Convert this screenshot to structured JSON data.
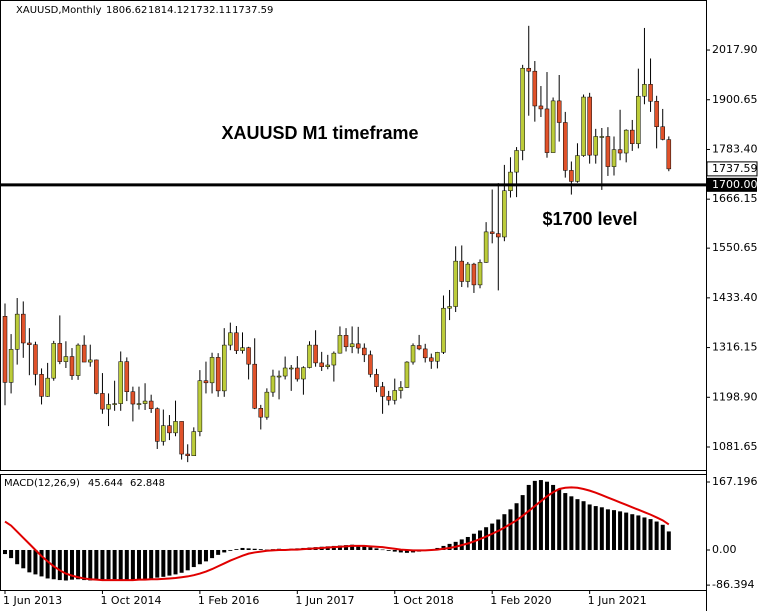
{
  "chart_data": [
    {
      "type": "candlestick",
      "title": "XAUUSD,Monthly",
      "categories": [
        "1 Jun 2013",
        null,
        null,
        null,
        null,
        null,
        null,
        null,
        null,
        null,
        null,
        null,
        null,
        null,
        null,
        null,
        "1 Oct 2014",
        null,
        null,
        null,
        null,
        null,
        null,
        null,
        null,
        null,
        null,
        null,
        null,
        null,
        null,
        null,
        "1 Feb 2016",
        null,
        null,
        null,
        null,
        null,
        null,
        null,
        null,
        null,
        null,
        null,
        null,
        null,
        null,
        null,
        "1 Jun 2017",
        null,
        null,
        null,
        null,
        null,
        null,
        null,
        null,
        null,
        null,
        null,
        null,
        null,
        null,
        null,
        "1 Oct 2018",
        null,
        null,
        null,
        null,
        null,
        null,
        null,
        null,
        null,
        null,
        null,
        null,
        null,
        null,
        null,
        "1 Feb 2020",
        null,
        null,
        null,
        null,
        null,
        null,
        null,
        null,
        null,
        null,
        null,
        null,
        null,
        null,
        null,
        "1 Jun 2021",
        null,
        null,
        null,
        null,
        null,
        null,
        null,
        null,
        null,
        null,
        null,
        null,
        null
      ],
      "open": [
        1390,
        1234,
        1312,
        1395,
        1327,
        1323,
        1253,
        1201,
        1244,
        1326,
        1283,
        1295,
        1250,
        1322,
        1282,
        1287,
        1208,
        1171,
        1182,
        1184,
        1283,
        1212,
        1183,
        1184,
        1190,
        1172,
        1095,
        1132,
        1115,
        1142,
        1065,
        1061,
        1118,
        1238,
        1233,
        1293,
        1214,
        1322,
        1351,
        1309,
        1316,
        1277,
        1173,
        1152,
        1211,
        1249,
        1249,
        1268,
        1268,
        1242,
        1269,
        1322,
        1280,
        1271,
        1275,
        1303,
        1345,
        1318,
        1325,
        1315,
        1299,
        1253,
        1224,
        1201,
        1192,
        1215,
        1222,
        1282,
        1321,
        1313,
        1292,
        1284,
        1305,
        1409,
        1413,
        1520,
        1472,
        1513,
        1464,
        1517,
        1589,
        1585,
        1577,
        1686,
        1730,
        1781,
        1975,
        1968,
        1886,
        1879,
        1776,
        1898,
        1847,
        1734,
        1708,
        1769,
        1907,
        1770,
        1814,
        1814,
        1743,
        1783,
        1775,
        1829,
        1797,
        1909,
        1937,
        1897,
        1837,
        1806.62
      ],
      "high": [
        1420,
        1348,
        1433,
        1425,
        1362,
        1330,
        1267,
        1280,
        1332,
        1392,
        1331,
        1315,
        1326,
        1345,
        1323,
        1288,
        1256,
        1208,
        1238,
        1307,
        1293,
        1224,
        1224,
        1232,
        1205,
        1175,
        1170,
        1157,
        1191,
        1142,
        1088,
        1128,
        1263,
        1283,
        1304,
        1303,
        1362,
        1375,
        1367,
        1352,
        1318,
        1338,
        1181,
        1220,
        1264,
        1262,
        1295,
        1275,
        1296,
        1272,
        1331,
        1357,
        1306,
        1299,
        1307,
        1366,
        1362,
        1366,
        1365,
        1326,
        1309,
        1266,
        1235,
        1214,
        1243,
        1237,
        1284,
        1326,
        1346,
        1325,
        1302,
        1306,
        1439,
        1452,
        1555,
        1557,
        1518,
        1516,
        1524,
        1612,
        1689,
        1704,
        1747,
        1765,
        1789,
        1983,
        2075,
        1992,
        1933,
        1966,
        1906,
        1959,
        1872,
        1755,
        1798,
        1913,
        1917,
        1832,
        1834,
        1836,
        1814,
        1877,
        1831,
        1853,
        1974,
        2070,
        1998,
        1910,
        1879,
        1814.12
      ],
      "low": [
        1180,
        1208,
        1276,
        1292,
        1251,
        1227,
        1182,
        1200,
        1238,
        1277,
        1268,
        1240,
        1240,
        1282,
        1271,
        1206,
        1160,
        1131,
        1167,
        1167,
        1190,
        1142,
        1170,
        1169,
        1162,
        1077,
        1085,
        1098,
        1107,
        1052,
        1046,
        1061,
        1107,
        1208,
        1208,
        1200,
        1200,
        1310,
        1301,
        1302,
        1241,
        1171,
        1123,
        1146,
        1200,
        1194,
        1241,
        1214,
        1236,
        1205,
        1267,
        1271,
        1261,
        1265,
        1236,
        1302,
        1307,
        1303,
        1302,
        1282,
        1246,
        1211,
        1160,
        1180,
        1182,
        1196,
        1221,
        1276,
        1310,
        1281,
        1266,
        1267,
        1301,
        1381,
        1400,
        1459,
        1458,
        1445,
        1456,
        1516,
        1562,
        1451,
        1567,
        1670,
        1671,
        1758,
        1863,
        1849,
        1860,
        1764,
        1776,
        1802,
        1717,
        1677,
        1705,
        1766,
        1750,
        1750,
        1688,
        1721,
        1722,
        1758,
        1753,
        1780,
        1786,
        1890,
        1872,
        1786,
        1805,
        1732.11
      ],
      "close": [
        1234,
        1312,
        1395,
        1327,
        1323,
        1253,
        1201,
        1244,
        1326,
        1283,
        1295,
        1250,
        1322,
        1282,
        1287,
        1208,
        1171,
        1182,
        1184,
        1283,
        1212,
        1183,
        1184,
        1190,
        1172,
        1095,
        1132,
        1115,
        1142,
        1065,
        1061,
        1118,
        1238,
        1233,
        1293,
        1214,
        1322,
        1351,
        1309,
        1316,
        1277,
        1173,
        1152,
        1211,
        1249,
        1249,
        1268,
        1268,
        1242,
        1269,
        1322,
        1280,
        1271,
        1275,
        1303,
        1345,
        1318,
        1325,
        1315,
        1299,
        1253,
        1224,
        1201,
        1192,
        1215,
        1222,
        1282,
        1321,
        1313,
        1292,
        1284,
        1305,
        1409,
        1413,
        1520,
        1472,
        1513,
        1464,
        1517,
        1589,
        1585,
        1577,
        1686,
        1730,
        1781,
        1975,
        1968,
        1886,
        1879,
        1776,
        1898,
        1847,
        1734,
        1708,
        1769,
        1907,
        1770,
        1814,
        1814,
        1743,
        1783,
        1775,
        1829,
        1797,
        1909,
        1937,
        1897,
        1837,
        1807,
        1737.59
      ],
      "up_color": "#bccc3a",
      "down_color": "#e0522a",
      "ylim": [
        1027.4,
        2131.2
      ],
      "yticks": [
        {
          "value": 2017.9,
          "label": "2017.90"
        },
        1900.65,
        {
          "value": 1783.4,
          "label": "1783.40"
        },
        1666.15,
        1550.65,
        {
          "value": 1433.4,
          "label": "1433.40"
        },
        1316.15,
        {
          "value": 1198.9,
          "label": "1198.90"
        },
        1081.65
      ],
      "hline": {
        "value": 1700,
        "label": "1700.00"
      },
      "annotations": [
        "XAUUSD M1 timeframe",
        "$1700 level"
      ]
    },
    {
      "type": "macd",
      "title": "MACD(12,26,9)",
      "histogram": [
        -10,
        -20,
        -35,
        -45,
        -55,
        -60,
        -65,
        -70,
        -72,
        -74,
        -75,
        -73,
        -72,
        -74,
        -75,
        -74,
        -73,
        -72,
        -72,
        -73,
        -74,
        -74,
        -73,
        -72,
        -70,
        -68,
        -66,
        -63,
        -60,
        -56,
        -50,
        -42,
        -35,
        -28,
        -20,
        -12,
        -6,
        -2,
        2,
        5,
        4,
        3,
        2,
        1,
        2,
        3,
        2,
        3,
        4,
        5,
        6,
        7,
        8,
        9,
        10,
        11,
        12,
        13,
        12,
        10,
        7,
        4,
        1,
        -2,
        -4,
        -6,
        -7,
        -6,
        -4,
        -2,
        1,
        5,
        10,
        15,
        20,
        26,
        32,
        40,
        48,
        56,
        65,
        75,
        88,
        100,
        115,
        135,
        160,
        170,
        172,
        168,
        160,
        150,
        140,
        132,
        125,
        120,
        112,
        108,
        105,
        100,
        98,
        95,
        92,
        88,
        85,
        80,
        76,
        70,
        62,
        45.644
      ],
      "signal": [
        70,
        60,
        45,
        30,
        15,
        0,
        -15,
        -28,
        -40,
        -50,
        -58,
        -63,
        -67,
        -70,
        -72,
        -73,
        -74,
        -74,
        -74,
        -74,
        -74,
        -74,
        -73,
        -73,
        -72,
        -72,
        -71,
        -70,
        -69,
        -67,
        -65,
        -62,
        -58,
        -53,
        -47,
        -40,
        -33,
        -26,
        -20,
        -14,
        -9,
        -6,
        -4,
        -2,
        -1,
        0,
        0,
        1,
        1,
        2,
        3,
        4,
        5,
        6,
        7,
        8,
        9,
        10,
        10,
        10,
        9,
        8,
        7,
        5,
        3,
        1,
        0,
        -1,
        -1,
        -1,
        0,
        1,
        3,
        5,
        8,
        12,
        16,
        21,
        27,
        33,
        40,
        47,
        55,
        64,
        73,
        84,
        96,
        108,
        120,
        132,
        142,
        150,
        153,
        154,
        153,
        150,
        146,
        141,
        135,
        129,
        123,
        117,
        111,
        105,
        99,
        93,
        87,
        80,
        73,
        62.848
      ],
      "histogram_color": "#000000",
      "signal_color": "#e00000",
      "ylim": [
        -98.4,
        186.9
      ],
      "yticks": [
        167.196,
        {
          "value": 0,
          "label": "0.00"
        },
        -86.394
      ]
    }
  ]
}
